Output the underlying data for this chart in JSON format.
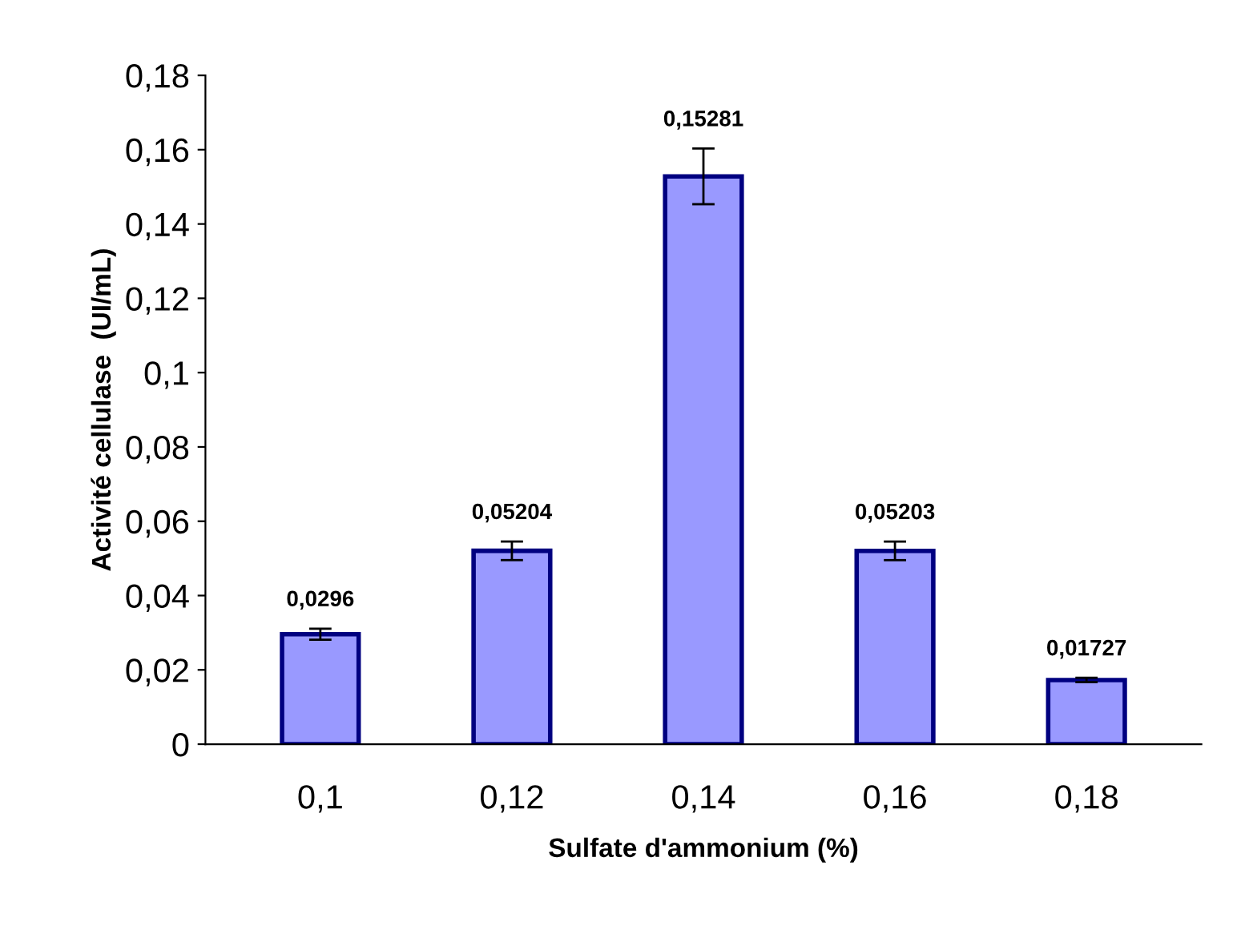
{
  "chart_data": {
    "type": "bar",
    "xlabel": "Sulfate d'ammonium (%)",
    "ylabel": "Activité cellulase  (UI/mL)",
    "categories": [
      "0,1",
      "0,12",
      "0,14",
      "0,16",
      "0,18"
    ],
    "values": [
      0.0296,
      0.05204,
      0.15281,
      0.05203,
      0.01727
    ],
    "errors": [
      0.0015,
      0.0025,
      0.0075,
      0.0025,
      0.0006
    ],
    "value_labels": [
      "0,0296",
      "0,05204",
      "0,15281",
      "0,05203",
      "0,01727"
    ],
    "color": "#9999ff",
    "ylim": [
      0,
      0.18
    ],
    "yticks": [
      0,
      {
        "value": 0.02,
        "label": "0,02"
      },
      {
        "value": 0.04,
        "label": "0,04"
      },
      {
        "value": 0.06,
        "label": "0,06"
      },
      {
        "value": 0.08,
        "label": "0,08"
      },
      {
        "value": 0.1,
        "label": "0,1"
      },
      {
        "value": 0.12,
        "label": "0,12"
      },
      {
        "value": 0.14,
        "label": "0,14"
      },
      {
        "value": 0.16,
        "label": "0,16"
      },
      {
        "value": 0.18,
        "label": "0,18"
      }
    ],
    "grid": false
  }
}
